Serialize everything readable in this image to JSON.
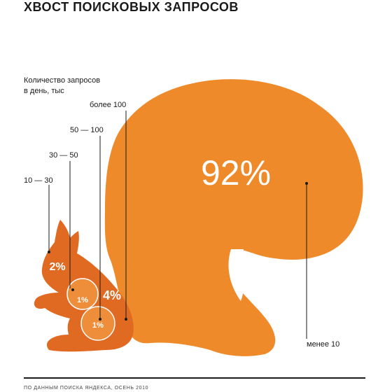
{
  "title": "ХВОСТ ПОИСКОВЫХ ЗАПРОСОВ",
  "legend_title": [
    "Количество запросов",
    "в день, тыс"
  ],
  "source": "ПО ДАННЫМ ПОИСКА ЯНДЕКСА, ОСЕНЬ 2010",
  "colors": {
    "tail": "#EE8A2A",
    "body": "#E06A22",
    "body_light": "#EF8E3A",
    "text_on_fill": "#ffffff"
  },
  "chart_data": {
    "type": "pie",
    "title": "ХВОСТ ПОИСКОВЫХ ЗАПРОСОВ",
    "legend_title": "Количество запросов в день, тыс",
    "categories": [
      "10 — 30",
      "30 — 50",
      "50 — 100",
      "более 100",
      "менее 10"
    ],
    "values": [
      2,
      1,
      1,
      4,
      92
    ],
    "labels": [
      "2%",
      "1%",
      "1%",
      "4%",
      "92%"
    ],
    "unit": "%"
  }
}
